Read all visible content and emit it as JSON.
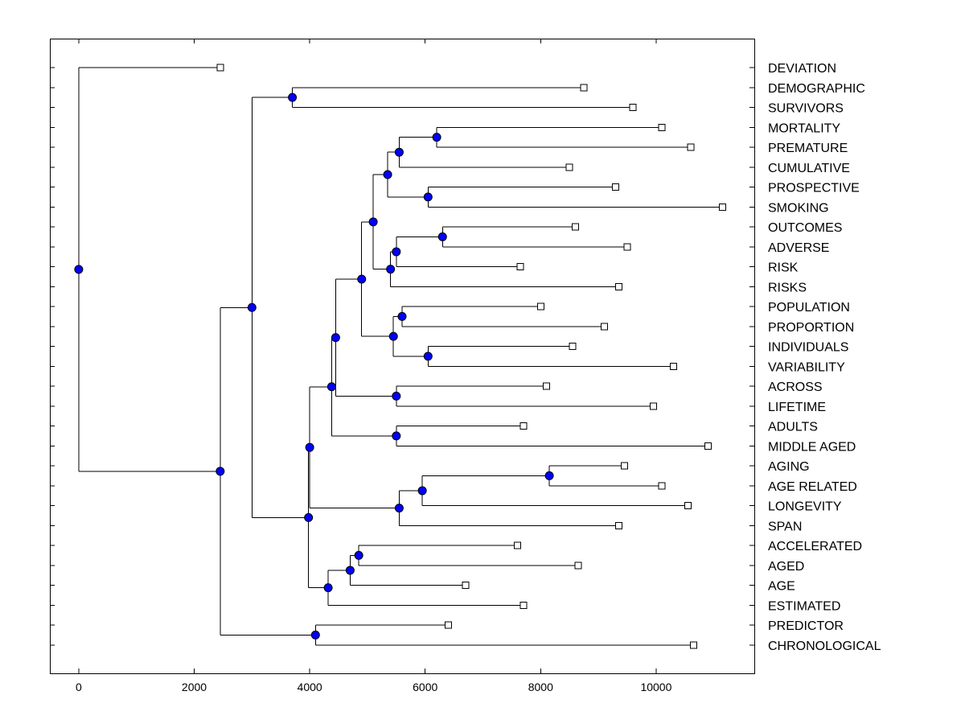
{
  "chart_data": {
    "type": "dendrogram",
    "title": "",
    "xlabel": "",
    "ylabel": "",
    "xlim": [
      -500,
      11700
    ],
    "xticks": [
      0,
      2000,
      4000,
      6000,
      8000,
      10000
    ],
    "xtick_labels": [
      "0",
      "2000",
      "4000",
      "6000",
      "8000",
      "10000"
    ],
    "node_color": "#0000ff",
    "leaf_marker_color": "#ffffff",
    "leaves": [
      {
        "label": "DEVIATION",
        "value": 2450
      },
      {
        "label": "DEMOGRAPHIC",
        "value": 8750
      },
      {
        "label": "SURVIVORS",
        "value": 9600
      },
      {
        "label": "MORTALITY",
        "value": 10100
      },
      {
        "label": "PREMATURE",
        "value": 10600
      },
      {
        "label": "CUMULATIVE",
        "value": 8500
      },
      {
        "label": "PROSPECTIVE",
        "value": 9300
      },
      {
        "label": "SMOKING",
        "value": 11150
      },
      {
        "label": "OUTCOMES",
        "value": 8600
      },
      {
        "label": "ADVERSE",
        "value": 9500
      },
      {
        "label": "RISK",
        "value": 7650
      },
      {
        "label": "RISKS",
        "value": 9350
      },
      {
        "label": "POPULATION",
        "value": 8000
      },
      {
        "label": "PROPORTION",
        "value": 9100
      },
      {
        "label": "INDIVIDUALS",
        "value": 8550
      },
      {
        "label": "VARIABILITY",
        "value": 10300
      },
      {
        "label": "ACROSS",
        "value": 8100
      },
      {
        "label": "LIFETIME",
        "value": 9950
      },
      {
        "label": "ADULTS",
        "value": 7700
      },
      {
        "label": "MIDDLE AGED",
        "value": 10900
      },
      {
        "label": "AGING",
        "value": 9450
      },
      {
        "label": "AGE RELATED",
        "value": 10100
      },
      {
        "label": "LONGEVITY",
        "value": 10550
      },
      {
        "label": "SPAN",
        "value": 9350
      },
      {
        "label": "ACCELERATED",
        "value": 7600
      },
      {
        "label": "AGED",
        "value": 8650
      },
      {
        "label": "AGE",
        "value": 6700
      },
      {
        "label": "ESTIMATED",
        "value": 7700
      },
      {
        "label": "PREDICTOR",
        "value": 6400
      },
      {
        "label": "CHRONOLOGICAL",
        "value": 10650
      }
    ],
    "merges": [
      {
        "id": "m1",
        "value": 3700,
        "children": [
          "L1",
          "L2"
        ]
      },
      {
        "id": "m2",
        "value": 6200,
        "children": [
          "L3",
          "L4"
        ]
      },
      {
        "id": "m3",
        "value": 5550,
        "children": [
          "m2",
          "L5"
        ]
      },
      {
        "id": "m4",
        "value": 6050,
        "children": [
          "L6",
          "L7"
        ]
      },
      {
        "id": "m5",
        "value": 5350,
        "children": [
          "m3",
          "m4"
        ]
      },
      {
        "id": "m6",
        "value": 6300,
        "children": [
          "L8",
          "L9"
        ]
      },
      {
        "id": "m7",
        "value": 5500,
        "children": [
          "m6",
          "L10"
        ]
      },
      {
        "id": "m8",
        "value": 5400,
        "children": [
          "m7",
          "L11"
        ]
      },
      {
        "id": "m9",
        "value": 5100,
        "children": [
          "m5",
          "m8"
        ]
      },
      {
        "id": "m10",
        "value": 5600,
        "children": [
          "L12",
          "L13"
        ]
      },
      {
        "id": "m11",
        "value": 6050,
        "children": [
          "L14",
          "L15"
        ]
      },
      {
        "id": "m12",
        "value": 5450,
        "children": [
          "m10",
          "m11"
        ]
      },
      {
        "id": "m13",
        "value": 4900,
        "children": [
          "m9",
          "m12"
        ]
      },
      {
        "id": "m14",
        "value": 5500,
        "children": [
          "L16",
          "L17"
        ]
      },
      {
        "id": "m15",
        "value": 4450,
        "children": [
          "m13",
          "m14"
        ]
      },
      {
        "id": "m16",
        "value": 5500,
        "children": [
          "L18",
          "L19"
        ]
      },
      {
        "id": "m17",
        "value": 4380,
        "children": [
          "m15",
          "m16"
        ]
      },
      {
        "id": "m18",
        "value": 8150,
        "children": [
          "L20",
          "L21"
        ]
      },
      {
        "id": "m19",
        "value": 5950,
        "children": [
          "m18",
          "L22"
        ]
      },
      {
        "id": "m20",
        "value": 5550,
        "children": [
          "m19",
          "L23"
        ]
      },
      {
        "id": "m21",
        "value": 4000,
        "children": [
          "m17",
          "m20"
        ]
      },
      {
        "id": "m22",
        "value": 4850,
        "children": [
          "L24",
          "L25"
        ]
      },
      {
        "id": "m23",
        "value": 4700,
        "children": [
          "m22",
          "L26"
        ]
      },
      {
        "id": "m24",
        "value": 4320,
        "children": [
          "m23",
          "L27"
        ]
      },
      {
        "id": "m25",
        "value": 3980,
        "children": [
          "m21",
          "m24"
        ]
      },
      {
        "id": "m26",
        "value": 3000,
        "children": [
          "m1",
          "m25"
        ]
      },
      {
        "id": "m27",
        "value": 4100,
        "children": [
          "L28",
          "L29"
        ]
      },
      {
        "id": "m28",
        "value": 2450,
        "children": [
          "m26",
          "m27"
        ]
      },
      {
        "id": "m29",
        "value": 0,
        "children": [
          "L0",
          "m28"
        ]
      }
    ]
  }
}
